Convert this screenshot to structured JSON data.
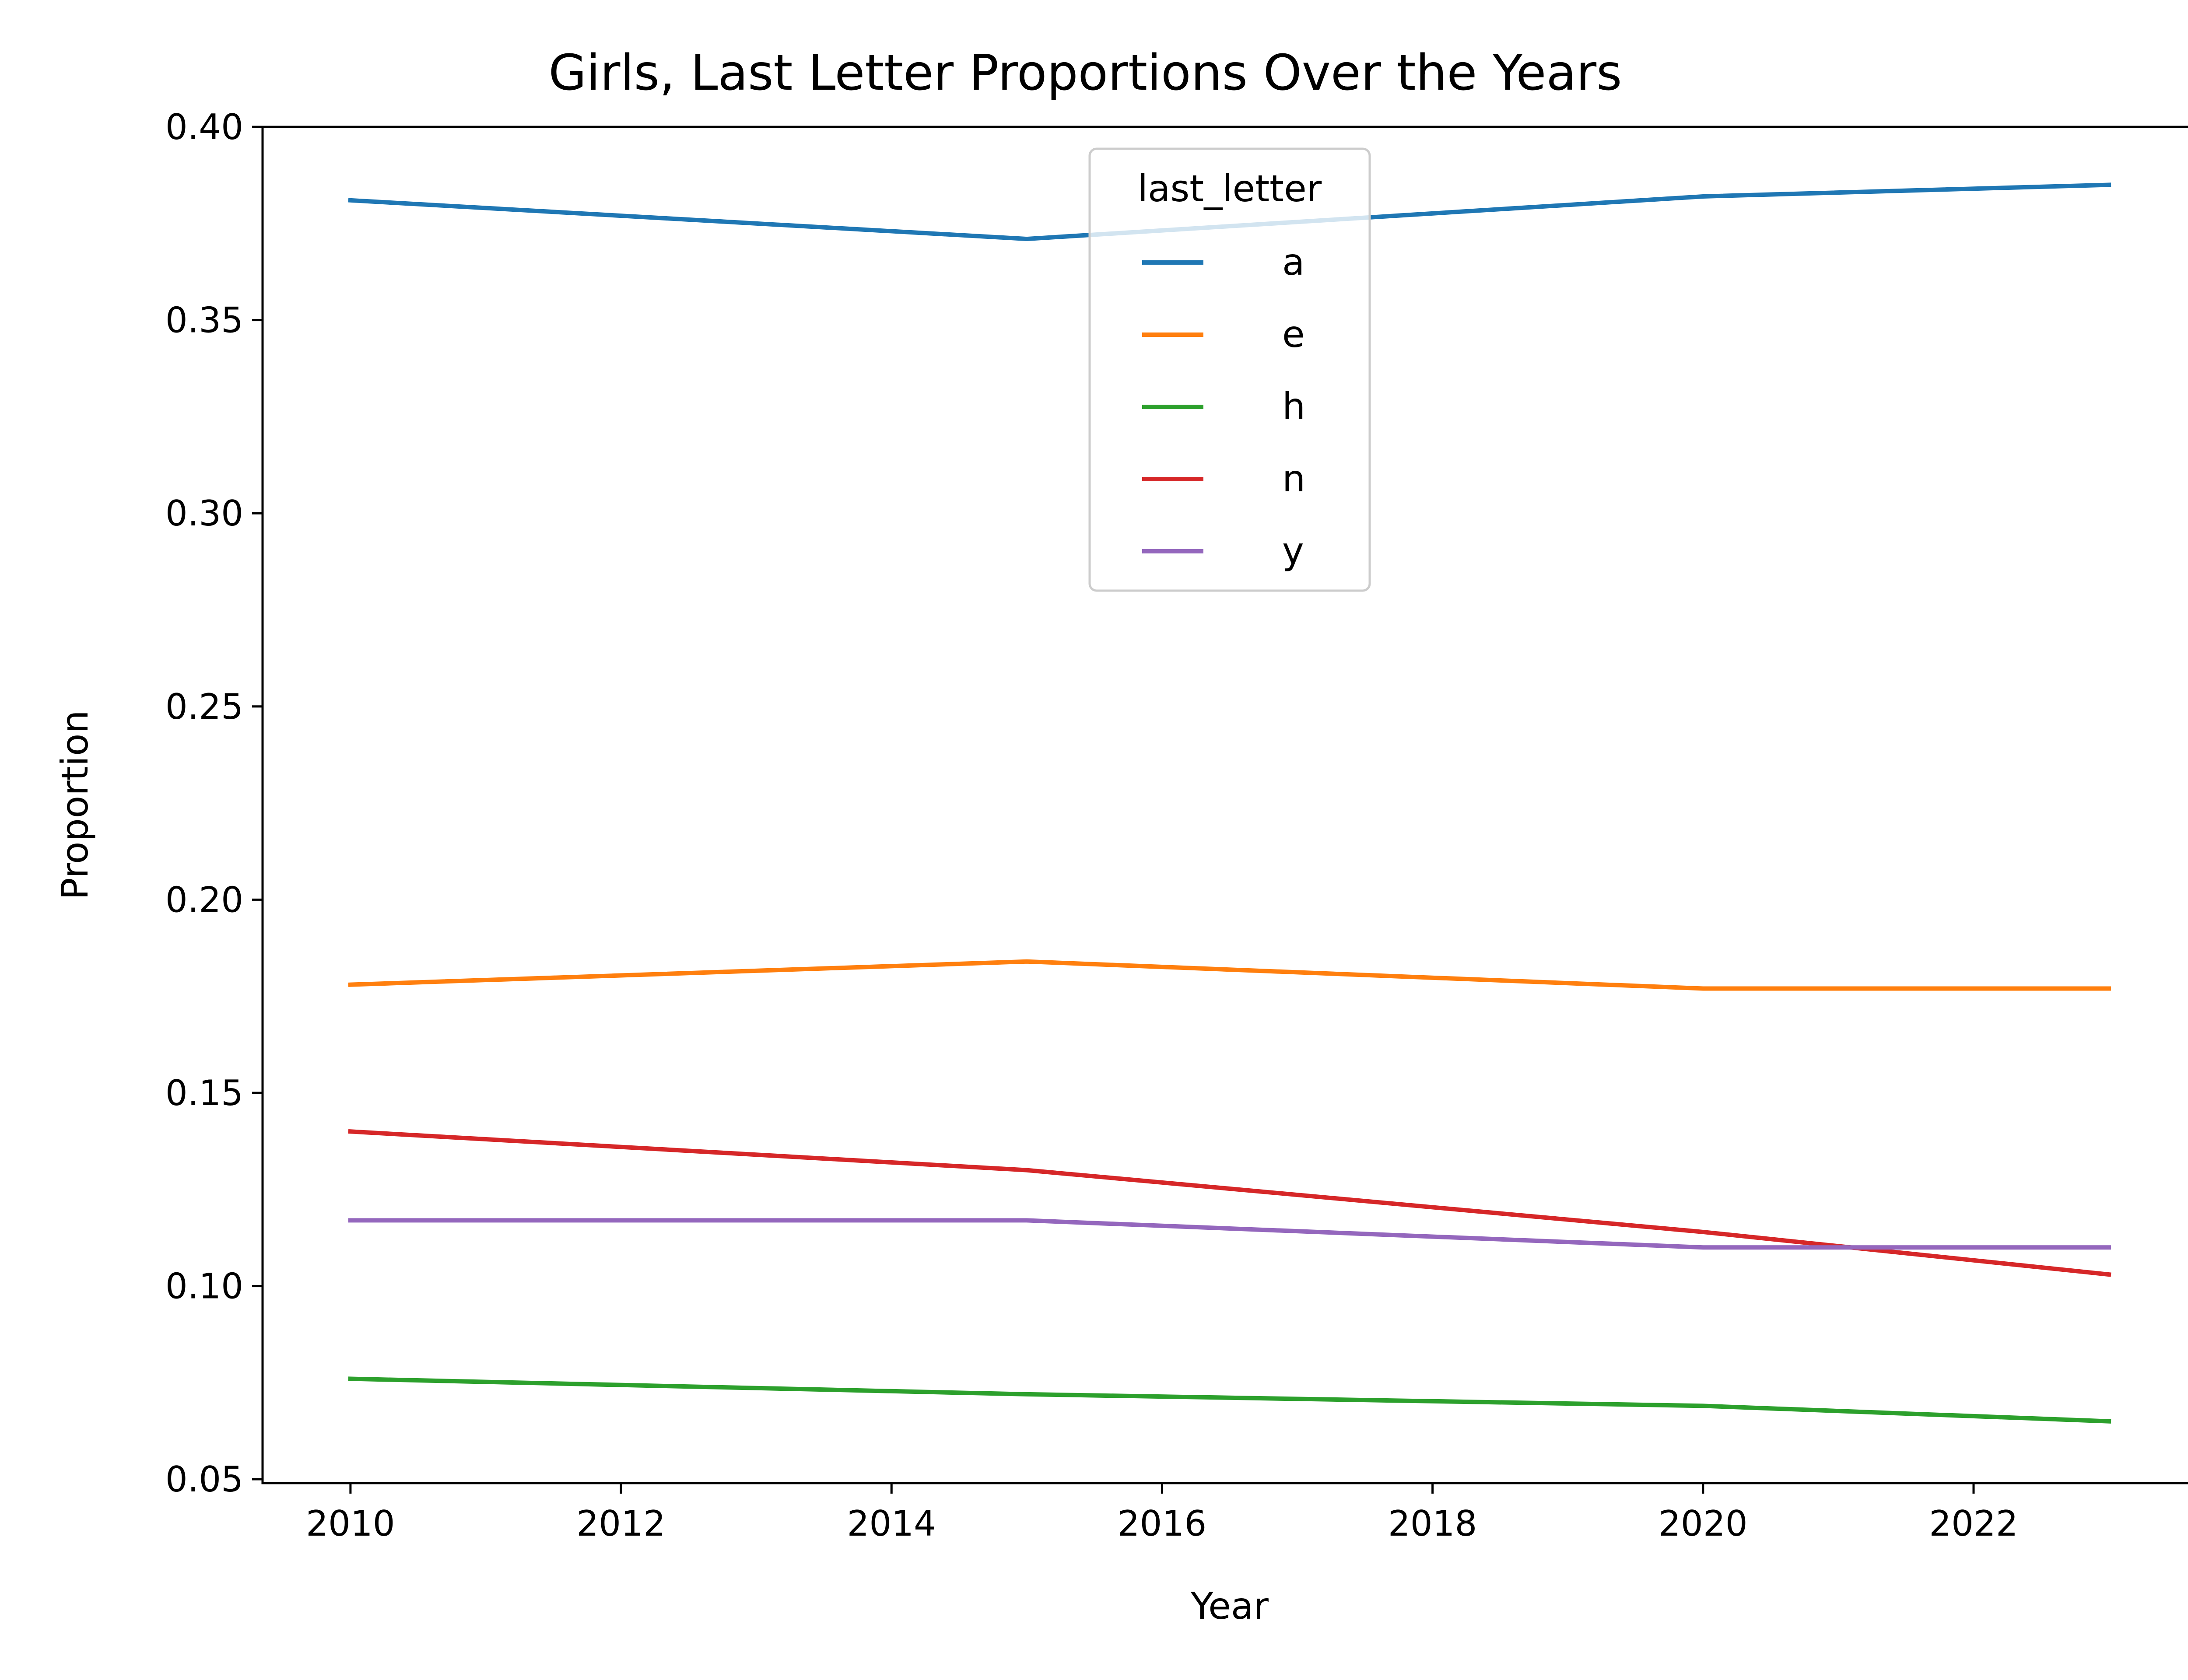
{
  "chart_data": {
    "type": "line",
    "title": "Girls, Last Letter Proportions Over the Years",
    "xlabel": "Year",
    "ylabel": "Proportion",
    "x": [
      2010,
      2015,
      2020,
      2023
    ],
    "xlim": [
      2009.35,
      2023.65
    ],
    "ylim": [
      0.049,
      0.4
    ],
    "xticks": [
      2010,
      2012,
      2014,
      2016,
      2018,
      2020,
      2022
    ],
    "xtick_labels": [
      "2010",
      "2012",
      "2014",
      "2016",
      "2018",
      "2020",
      "2022"
    ],
    "yticks": [
      0.05,
      0.1,
      0.15,
      0.2,
      0.25,
      0.3,
      0.35,
      0.4
    ],
    "ytick_labels": [
      "0.05",
      "0.10",
      "0.15",
      "0.20",
      "0.25",
      "0.30",
      "0.35",
      "0.40"
    ],
    "grid": false,
    "legend": {
      "title": "last_letter",
      "placement": "upper center"
    },
    "series": [
      {
        "name": "a",
        "color": "#1f77b4",
        "values": [
          0.381,
          0.371,
          0.382,
          0.385
        ]
      },
      {
        "name": "e",
        "color": "#ff7f0e",
        "values": [
          0.178,
          0.184,
          0.177,
          0.177
        ]
      },
      {
        "name": "h",
        "color": "#2ca02c",
        "values": [
          0.076,
          0.072,
          0.069,
          0.065
        ]
      },
      {
        "name": "n",
        "color": "#d62728",
        "values": [
          0.14,
          0.13,
          0.114,
          0.103
        ]
      },
      {
        "name": "y",
        "color": "#9467bd",
        "values": [
          0.117,
          0.117,
          0.11,
          0.11
        ]
      }
    ]
  }
}
